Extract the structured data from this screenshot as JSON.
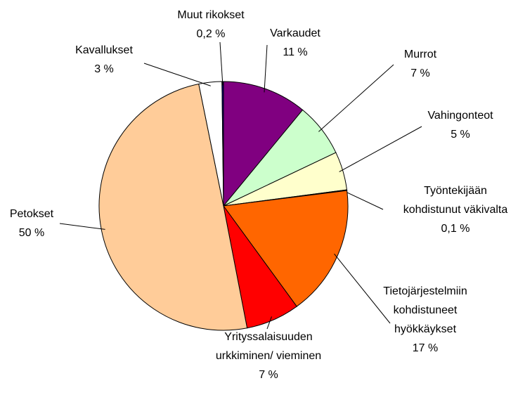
{
  "chart_data": {
    "type": "pie",
    "categories": [
      "Varkaudet",
      "Murrot",
      "Vahingonteot",
      "Työntekijään\nkohdistunut väkivalta",
      "Tietojärjestelmiin\nkohdistuneet\nhyökkäykset",
      "Yrityssalaisuuden\nurkkiminen/ vieminen",
      "Petokset",
      "Kavallukset",
      "Muut rikokset"
    ],
    "values": [
      11,
      7,
      5,
      0.1,
      17,
      7,
      50,
      3,
      0.2
    ],
    "value_labels": [
      "11 %",
      "7 %",
      "5 %",
      "0,1 %",
      "17 %",
      "7 %",
      "50 %",
      "3 %",
      "0,2 %"
    ],
    "colors": [
      "#800080",
      "#ccffcc",
      "#ffffcc",
      "#ff9900",
      "#ff6600",
      "#ff0000",
      "#ffcc99",
      "#ffffff",
      "#000080"
    ]
  }
}
